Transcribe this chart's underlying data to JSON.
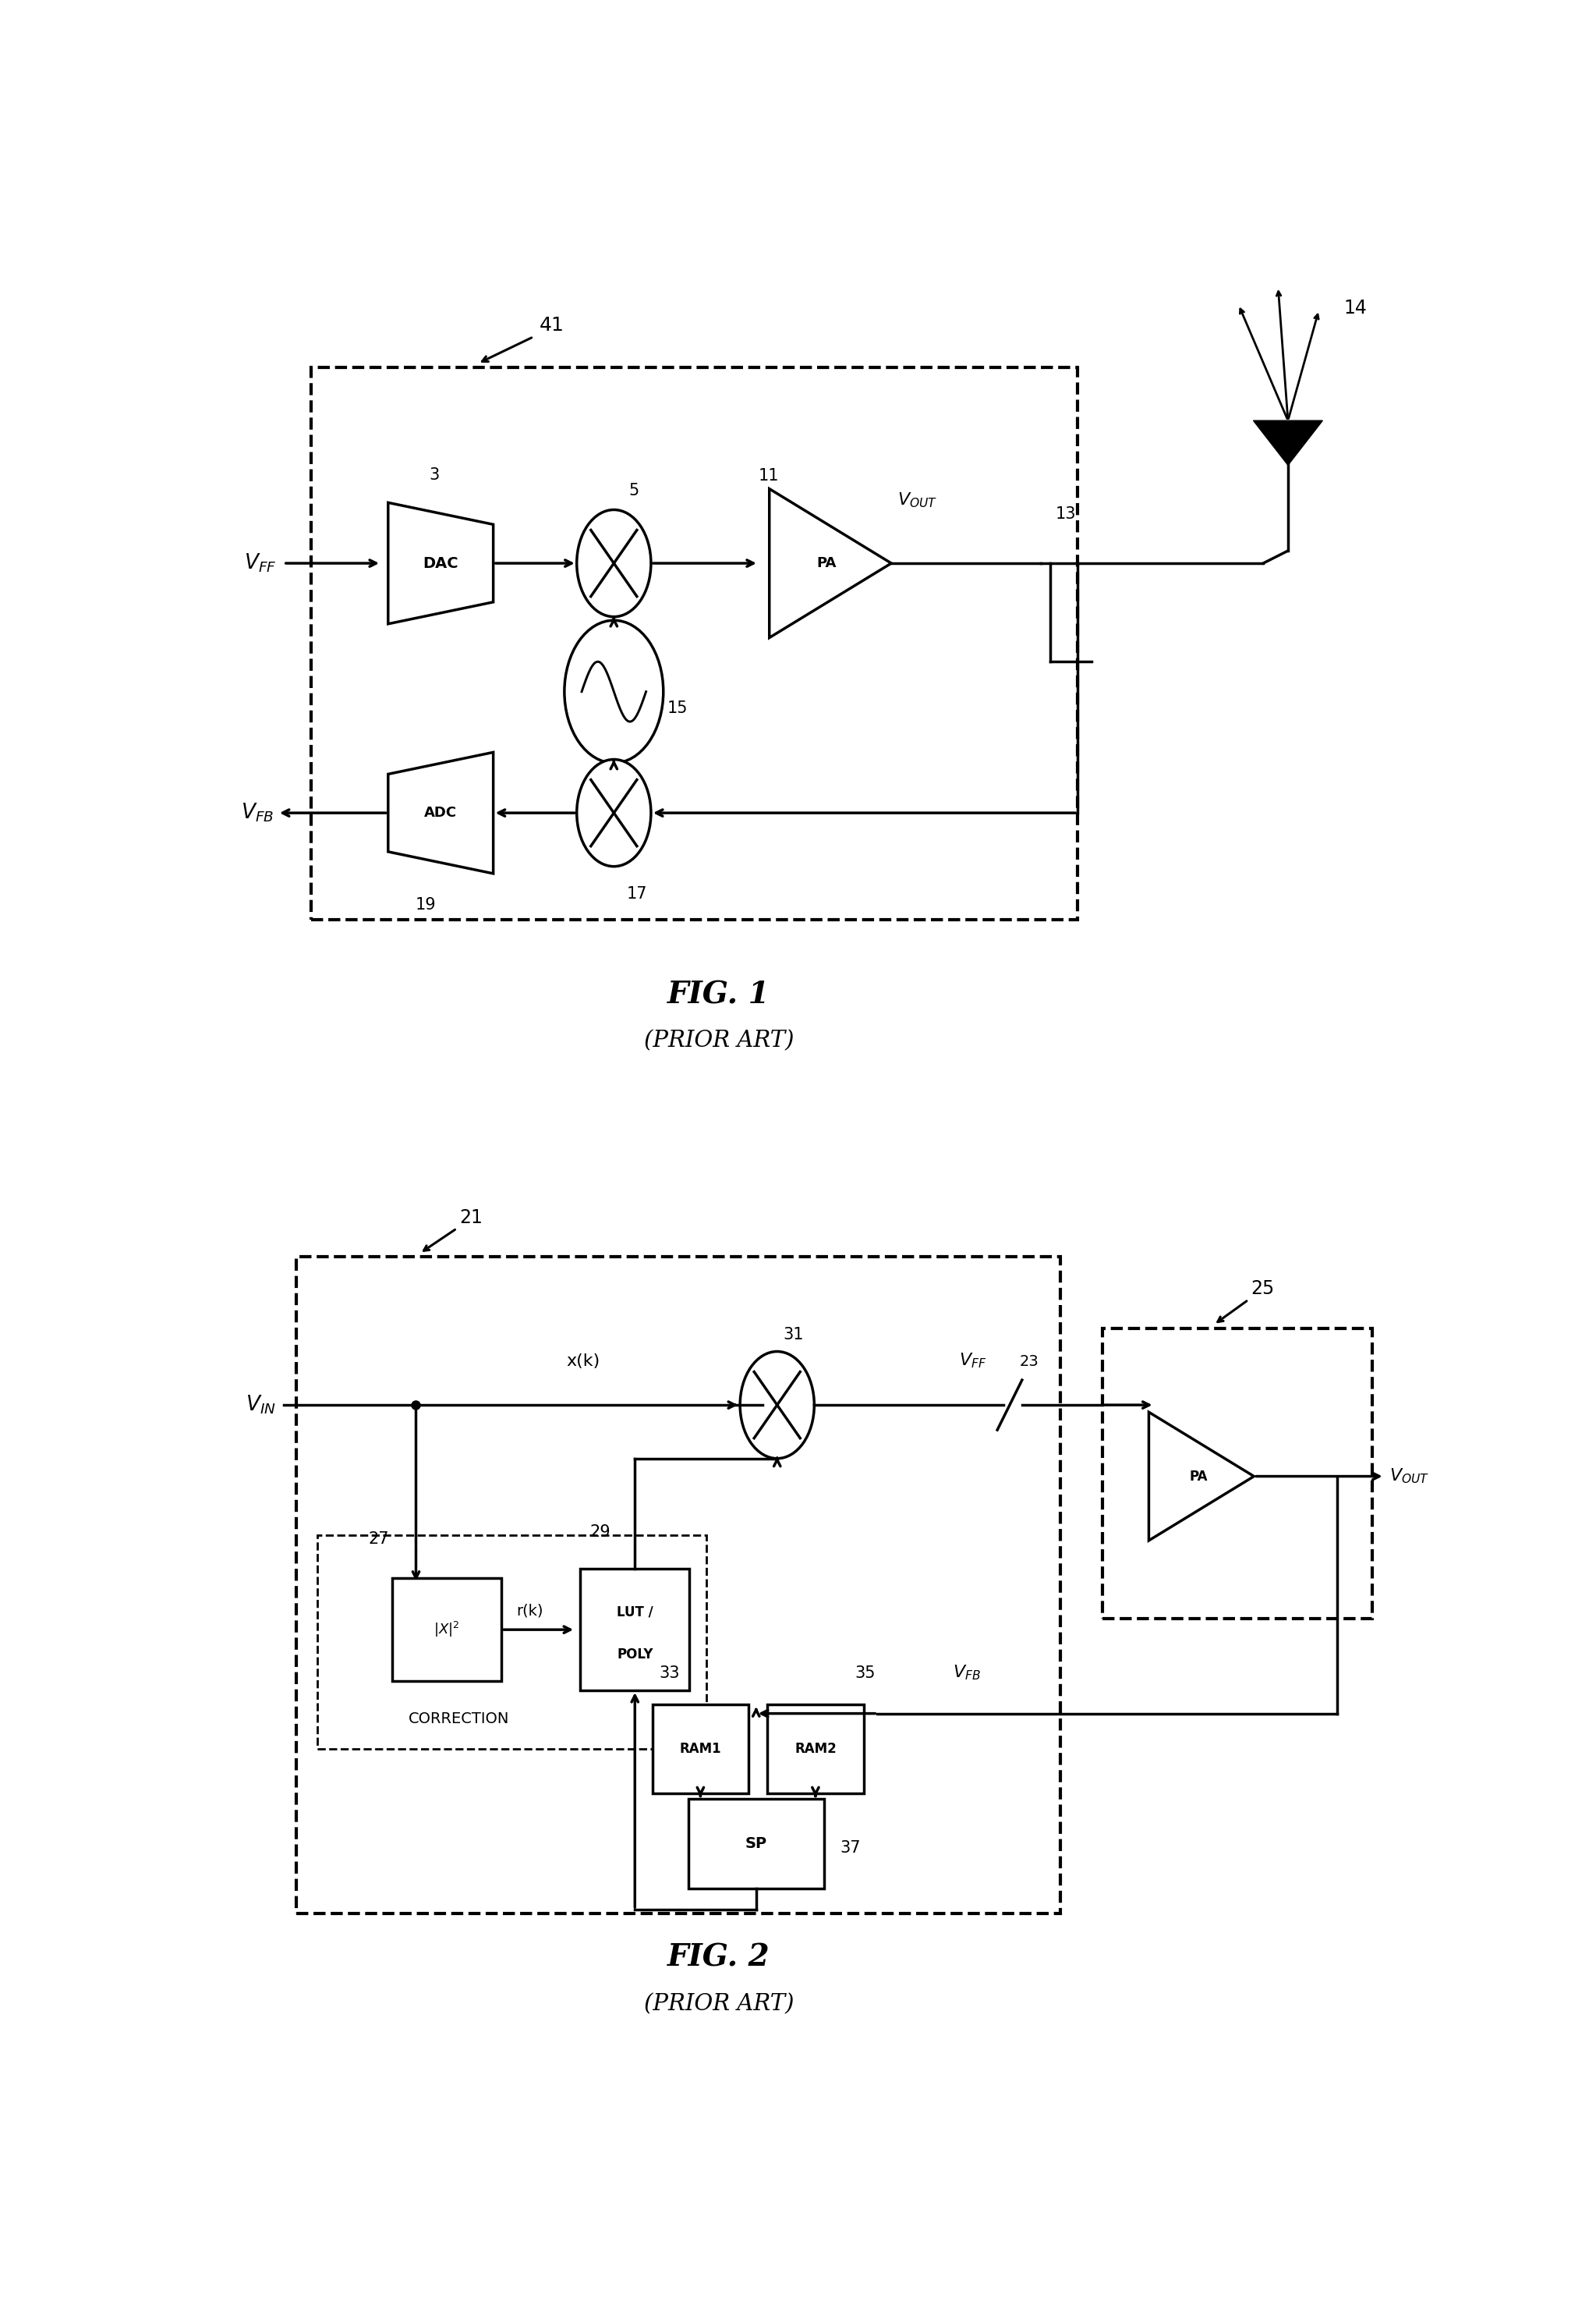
{
  "bg_color": "#ffffff",
  "line_color": "#000000",
  "fig1_title": "FIG. 1",
  "fig1_subtitle": "(PRIOR ART)",
  "fig2_title": "FIG. 2",
  "fig2_subtitle": "(PRIOR ART)",
  "lw": 2.5
}
